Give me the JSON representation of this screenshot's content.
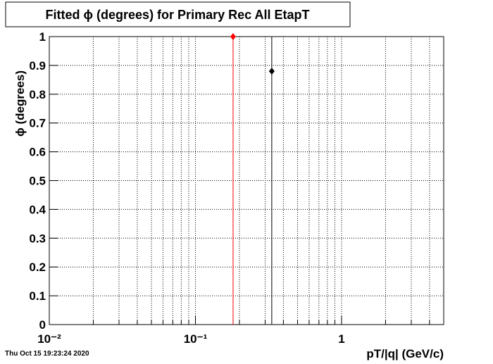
{
  "chart_data": {
    "type": "scatter",
    "title": "Fitted ϕ (degrees) for Primary Rec All EtapT",
    "x_label": "pT/|q| (GeV/c)",
    "y_label": "ϕ (degrees)",
    "timestamp": "Thu Oct 15 19:23:24 2020",
    "log_x": true,
    "grid": true,
    "xlim": [
      0.01,
      5
    ],
    "ylim": [
      0,
      1
    ],
    "xticks": [
      {
        "value": 0.01,
        "label": "10⁻²"
      },
      {
        "value": 0.1,
        "label": "10⁻¹"
      },
      1
    ],
    "xminor": [
      0.02,
      0.03,
      0.04,
      0.05,
      0.06,
      0.07,
      0.08,
      0.09,
      0.2,
      0.3,
      0.4,
      0.5,
      0.6,
      0.7,
      0.8,
      0.9,
      2,
      3,
      4
    ],
    "yticks": [
      0,
      0.1,
      0.2,
      0.3,
      0.4,
      0.5,
      0.6,
      0.7,
      0.8,
      0.9,
      1
    ],
    "series": [
      {
        "color": "#ff0000",
        "x": [
          0.181
        ],
        "values": [
          1.0
        ],
        "errors": [
          1.0
        ]
      },
      {
        "color": "#000000",
        "x": [
          0.333
        ],
        "values": [
          0.88
        ],
        "errors": [
          0.9
        ]
      }
    ]
  }
}
